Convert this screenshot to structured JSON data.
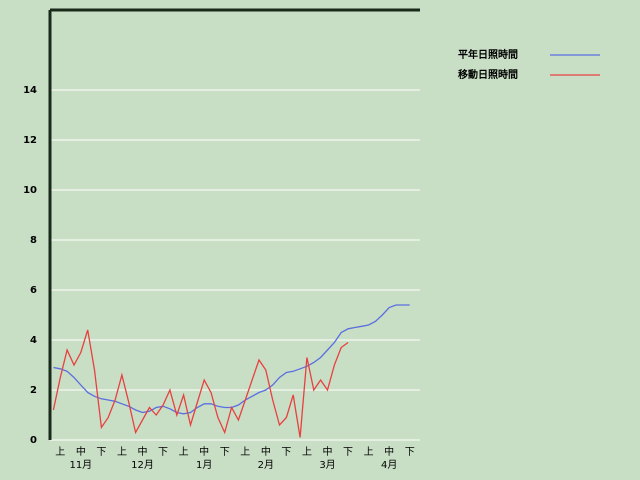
{
  "chart_data": {
    "type": "line",
    "categories": [
      null,
      "上",
      null,
      null,
      "中",
      null,
      null,
      "下",
      null,
      null,
      "上",
      null,
      null,
      "中",
      null,
      null,
      "下",
      null,
      null,
      "上",
      null,
      null,
      "中",
      null,
      null,
      "下",
      null,
      null,
      "上",
      null,
      null,
      "中",
      null,
      null,
      "下",
      null,
      null,
      "上",
      null,
      null,
      "中",
      null,
      null,
      "下",
      null,
      null,
      "上",
      null,
      null,
      "中",
      null,
      null,
      "下",
      null
    ],
    "months": [
      "11月",
      "12月",
      "1月",
      "2月",
      "3月",
      "4月"
    ],
    "series": [
      {
        "name": "平年日照時間",
        "color": "#5a6ee0",
        "values": [
          2.9,
          2.85,
          2.75,
          2.5,
          2.2,
          1.9,
          1.75,
          1.65,
          1.6,
          1.55,
          1.45,
          1.35,
          1.2,
          1.1,
          1.15,
          1.3,
          1.35,
          1.25,
          1.1,
          1.05,
          1.1,
          1.3,
          1.45,
          1.45,
          1.35,
          1.3,
          1.3,
          1.4,
          1.6,
          1.75,
          1.9,
          2.0,
          2.2,
          2.5,
          2.7,
          2.75,
          2.85,
          2.95,
          3.1,
          3.3,
          3.6,
          3.9,
          4.3,
          4.45,
          4.5,
          4.55,
          4.6,
          4.75,
          5.0,
          5.3,
          5.4,
          5.4,
          5.4,
          null
        ]
      },
      {
        "name": "移動日照時間",
        "color": "#e84040",
        "values": [
          1.2,
          2.5,
          3.6,
          3.0,
          3.5,
          4.4,
          2.8,
          0.5,
          0.9,
          1.6,
          2.6,
          1.5,
          0.3,
          0.8,
          1.3,
          1.0,
          1.4,
          2.0,
          1.0,
          1.8,
          0.6,
          1.5,
          2.4,
          1.9,
          0.9,
          0.3,
          1.3,
          0.8,
          1.6,
          2.4,
          3.2,
          2.8,
          1.6,
          0.6,
          0.9,
          1.8,
          0.1,
          3.3,
          2.0,
          2.4,
          2.0,
          3.0,
          3.7,
          3.9,
          null,
          null,
          null,
          null,
          null,
          null,
          null,
          null,
          null,
          null
        ]
      }
    ],
    "ylim": [
      0,
      17.2
    ],
    "yticks": [
      0,
      2,
      4,
      6,
      8,
      10,
      12,
      14
    ],
    "grid": true,
    "legend": "top-right"
  }
}
